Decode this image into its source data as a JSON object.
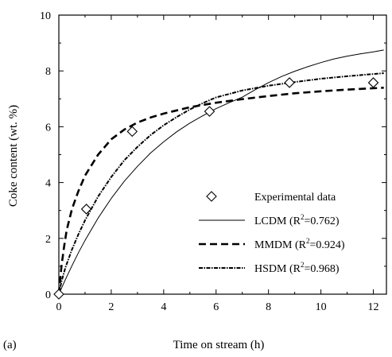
{
  "chart_data": {
    "type": "line",
    "panel_label": "(a)",
    "xlabel": "Time on stream (h)",
    "ylabel": "Coke content (wt. %)",
    "xlim": [
      0,
      12.5
    ],
    "ylim": [
      0,
      10
    ],
    "xticks": [
      0,
      2,
      4,
      6,
      8,
      10,
      12
    ],
    "yticks": [
      0,
      2,
      4,
      6,
      8,
      10
    ],
    "grid": false,
    "legend_position": "bottom-right",
    "series": [
      {
        "name": "Experimental data",
        "kind": "scatter",
        "marker": "diamond-open",
        "x": [
          0,
          1.05,
          2.8,
          5.75,
          8.8,
          12.0
        ],
        "y": [
          0,
          3.05,
          5.83,
          6.55,
          7.58,
          7.58
        ]
      },
      {
        "name": "LCDM",
        "r2_prefix": "(R",
        "r2_suffix": "=0.762)",
        "kind": "line",
        "dash": "solid",
        "color": "#000000",
        "x": [
          0,
          0.25,
          0.5,
          0.75,
          1,
          1.5,
          2,
          2.5,
          3,
          3.5,
          4,
          4.5,
          5,
          5.5,
          6,
          6.5,
          7,
          7.5,
          8,
          8.5,
          9,
          9.5,
          10,
          10.5,
          11,
          11.5,
          12,
          12.4
        ],
        "y": [
          0,
          0.52,
          1.02,
          1.49,
          1.93,
          2.73,
          3.43,
          4.05,
          4.58,
          5.06,
          5.46,
          5.82,
          6.13,
          6.4,
          6.65,
          6.86,
          7.06,
          7.33,
          7.58,
          7.8,
          7.99,
          8.15,
          8.3,
          8.43,
          8.53,
          8.61,
          8.68,
          8.75
        ]
      },
      {
        "name": "MMDM",
        "r2_prefix": "(R",
        "r2_suffix": "=0.924)",
        "kind": "line",
        "dash": "long-dash",
        "color": "#000000",
        "x": [
          0,
          0.1,
          0.2,
          0.3,
          0.5,
          0.75,
          1,
          1.5,
          2,
          2.5,
          3,
          3.5,
          4,
          5,
          6,
          7,
          8,
          9,
          10,
          11,
          12,
          12.4
        ],
        "y": [
          0,
          1.0,
          1.7,
          2.3,
          3.05,
          3.7,
          4.25,
          5.0,
          5.55,
          5.9,
          6.15,
          6.33,
          6.47,
          6.7,
          6.86,
          6.99,
          7.1,
          7.2,
          7.27,
          7.33,
          7.38,
          7.4
        ]
      },
      {
        "name": "HSDM",
        "r2_prefix": "(R",
        "r2_suffix": "=0.968)",
        "kind": "line",
        "dash": "dash-dot",
        "color": "#000000",
        "x": [
          0,
          0.1,
          0.25,
          0.5,
          0.75,
          1,
          1.5,
          2,
          2.5,
          3,
          3.5,
          4,
          4.5,
          5,
          5.5,
          6,
          7,
          8,
          9,
          10,
          11,
          12,
          12.4
        ],
        "y": [
          0,
          0.45,
          0.95,
          1.6,
          2.15,
          2.65,
          3.5,
          4.2,
          4.8,
          5.28,
          5.7,
          6.05,
          6.35,
          6.62,
          6.85,
          7.05,
          7.3,
          7.47,
          7.6,
          7.72,
          7.81,
          7.89,
          7.92
        ]
      }
    ]
  }
}
